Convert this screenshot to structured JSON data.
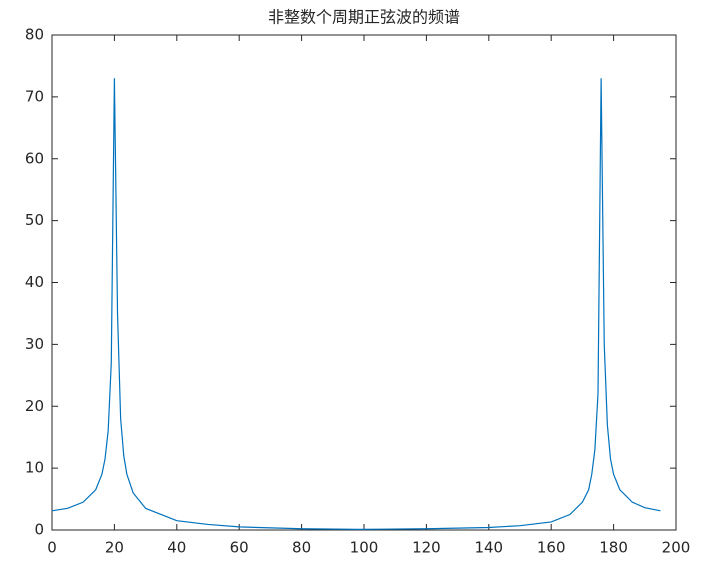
{
  "chart_data": {
    "type": "line",
    "title": "非整数个周期正弦波的频谱",
    "x": [
      0,
      5,
      10,
      14,
      16,
      17,
      18,
      19,
      20,
      21,
      22,
      23,
      24,
      26,
      30,
      40,
      50,
      60,
      80,
      98,
      120,
      140,
      150,
      160,
      166,
      170,
      172,
      173,
      174,
      175,
      176,
      177,
      178,
      179,
      180,
      182,
      186,
      190,
      195
    ],
    "series": [
      {
        "color": "#0072bd",
        "values": [
          3.1,
          3.5,
          4.5,
          6.5,
          9,
          11.5,
          16,
          27,
          73,
          35,
          18,
          12,
          9,
          6,
          3.5,
          1.5,
          0.9,
          0.5,
          0.2,
          0.1,
          0.2,
          0.4,
          0.7,
          1.3,
          2.5,
          4.5,
          6.5,
          9,
          13,
          22,
          73,
          30,
          17,
          11.5,
          9,
          6.5,
          4.5,
          3.6,
          3.1
        ]
      }
    ],
    "xlim": [
      0,
      200
    ],
    "xticks": [
      0,
      20,
      40,
      60,
      80,
      100,
      120,
      140,
      160,
      180,
      200
    ],
    "ylim": [
      0,
      80
    ],
    "yticks": [
      0,
      10,
      20,
      30,
      40,
      50,
      60,
      70,
      80
    ]
  }
}
